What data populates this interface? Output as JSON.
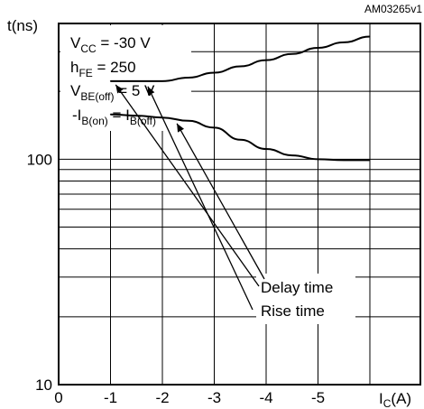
{
  "chart_data": {
    "type": "line",
    "figure_code": "AM03265v1",
    "ylabel": "t(ns)",
    "xlabel_main": "I",
    "xlabel_sub": "C",
    "xlabel_unit": "(A)",
    "y_scale": "log",
    "ylim": [
      10,
      400
    ],
    "y_ticks": [
      {
        "value": 10,
        "label": "10"
      },
      {
        "value": 100,
        "label": "100"
      }
    ],
    "xlim": [
      0,
      -6.3
    ],
    "x_ticks": [
      {
        "value": 0,
        "label": "0"
      },
      {
        "value": -1,
        "label": "-1"
      },
      {
        "value": -2,
        "label": "-2"
      },
      {
        "value": -3,
        "label": "-3"
      },
      {
        "value": -4,
        "label": "-4"
      },
      {
        "value": -5,
        "label": "-5"
      }
    ],
    "grid": true,
    "conditions": [
      {
        "main": "V",
        "sub": "CC",
        "rest": " = -30 V"
      },
      {
        "main": "h",
        "sub": "FE",
        "rest": " = 250"
      },
      {
        "main": "V",
        "sub": "BE(off)",
        "rest": " = 5 V"
      },
      {
        "main": "-I",
        "sub": "B(on)",
        "rest": " = I",
        "sub2": "B(off)"
      }
    ],
    "series": [
      {
        "name": "Delay time",
        "color": "#000000",
        "x": [
          -1,
          -1.5,
          -2,
          -2.5,
          -3,
          -3.5,
          -4,
          -4.5,
          -5,
          -5.5,
          -6
        ],
        "y": [
          222,
          222,
          222,
          230,
          242,
          258,
          275,
          293,
          312,
          330,
          350
        ]
      },
      {
        "name": "Rise time",
        "color": "#000000",
        "x": [
          -1,
          -1.5,
          -2,
          -2.5,
          -3,
          -3.5,
          -4,
          -4.5,
          -5,
          -5.5,
          -6
        ],
        "y": [
          158,
          156,
          153,
          148,
          138,
          122,
          111,
          104,
          100,
          99,
          99
        ]
      }
    ],
    "annotations": [
      "Delay time",
      "Rise time"
    ]
  }
}
